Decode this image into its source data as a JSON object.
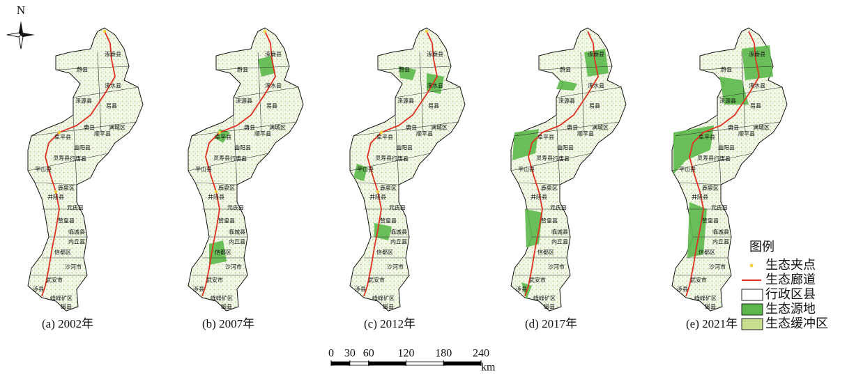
{
  "north": "N",
  "panels": [
    "(a) 2002年",
    "(b) 2007年",
    "(c) 2012年",
    "(d) 2017年",
    "(e) 2021年"
  ],
  "counties": [
    "涿鹿县",
    "蔚县",
    "涞水县",
    "涞源县",
    "易县",
    "唐县",
    "满城区",
    "顺平县",
    "阜平县",
    "曲阳县",
    "灵寿县",
    "行唐县",
    "平山县",
    "鹿泉区",
    "井陉县",
    "元氏县",
    "赞皇县",
    "临城县",
    "内丘县",
    "信都区",
    "沙河市",
    "武安市",
    "涉县",
    "峰峰矿区",
    "磁县"
  ],
  "legend": {
    "title": "图例",
    "items": [
      "生态夹点",
      "生态廊道",
      "行政区县",
      "生态源地",
      "生态缓冲区"
    ]
  },
  "scale_bar": {
    "ticks": [
      0,
      30,
      60,
      120,
      180,
      240
    ],
    "unit": "km"
  }
}
